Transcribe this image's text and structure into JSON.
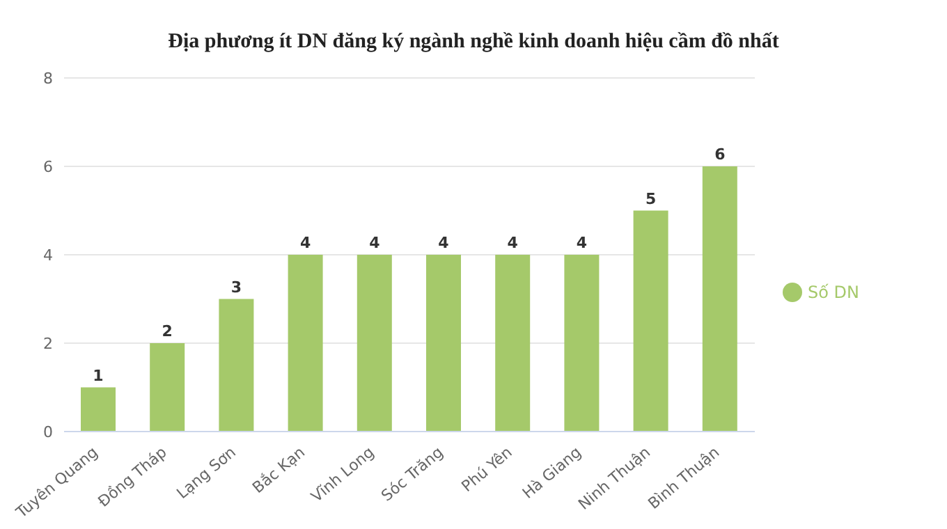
{
  "chart_data": {
    "type": "bar",
    "title": "Địa phương ít DN đăng ký ngành nghề kinh doanh hiệu cầm đồ nhất",
    "categories": [
      "Tuyên Quang",
      "Đồng Tháp",
      "Lạng Sơn",
      "Bắc Kạn",
      "Vĩnh Long",
      "Sóc Trăng",
      "Phú Yên",
      "Hà Giang",
      "Ninh Thuận",
      "Bình Thuận"
    ],
    "series": [
      {
        "name": "Số DN",
        "color": "#a5c96a",
        "values": [
          1,
          2,
          3,
          4,
          4,
          4,
          4,
          4,
          5,
          6
        ]
      }
    ],
    "ylim": [
      0,
      8
    ],
    "yticks": [
      0,
      2,
      4,
      6,
      8
    ],
    "grid": "y",
    "legend": "right",
    "data_labels": true
  }
}
